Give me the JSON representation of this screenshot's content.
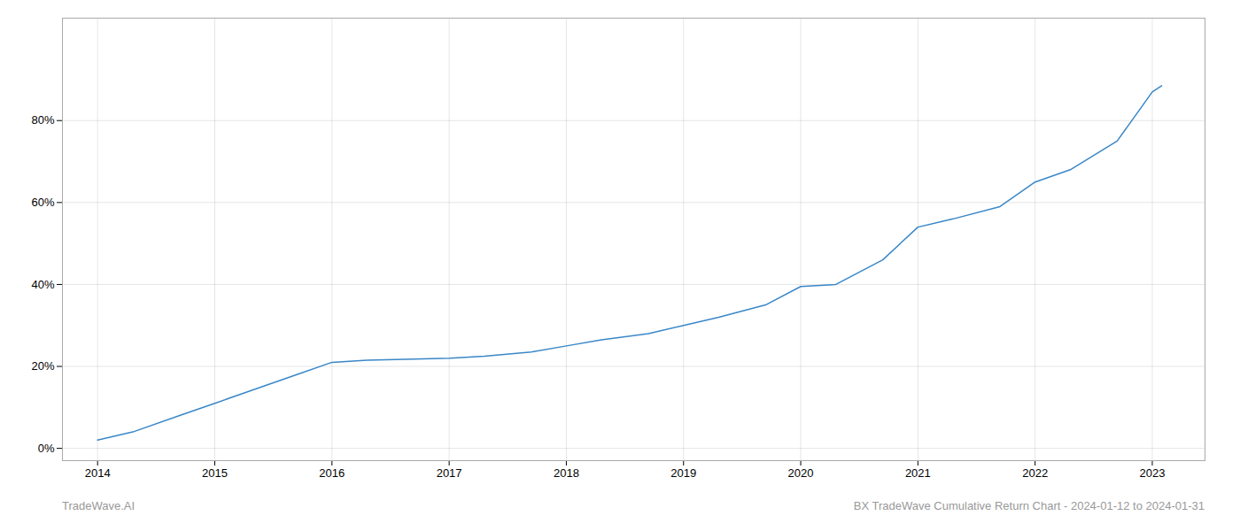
{
  "chart_data": {
    "type": "line",
    "x": [
      2014.0,
      2014.3,
      2014.7,
      2015.0,
      2015.3,
      2015.7,
      2016.0,
      2016.3,
      2016.7,
      2017.0,
      2017.3,
      2017.7,
      2018.0,
      2018.3,
      2018.7,
      2019.0,
      2019.3,
      2019.7,
      2020.0,
      2020.3,
      2020.7,
      2021.0,
      2021.3,
      2021.7,
      2022.0,
      2022.3,
      2022.7,
      2023.0,
      2023.08
    ],
    "values": [
      2.0,
      4.0,
      8.0,
      11.0,
      14.0,
      18.0,
      21.0,
      21.5,
      21.8,
      22.0,
      22.5,
      23.5,
      25.0,
      26.5,
      28.0,
      30.0,
      32.0,
      35.0,
      39.5,
      40.0,
      46.0,
      54.0,
      56.0,
      59.0,
      65.0,
      68.0,
      75.0,
      87.0,
      88.5
    ],
    "color": "#3a87c8",
    "xlim": [
      2013.7,
      2023.45
    ],
    "ylim": [
      -3,
      105
    ],
    "xticks": [
      2014,
      2015,
      2016,
      2017,
      2018,
      2019,
      2020,
      2021,
      2022,
      2023
    ],
    "yticks": [
      {
        "value": 0,
        "label": "0%"
      },
      {
        "value": 20,
        "label": "20%"
      },
      {
        "value": 40,
        "label": "40%"
      },
      {
        "value": 60,
        "label": "60%"
      },
      {
        "value": 80,
        "label": "80%"
      }
    ],
    "grid": true,
    "annotations": [
      "TradeWave.AI",
      "BX TradeWave Cumulative Return Chart - 2024-01-12 to 2024-01-31"
    ]
  }
}
